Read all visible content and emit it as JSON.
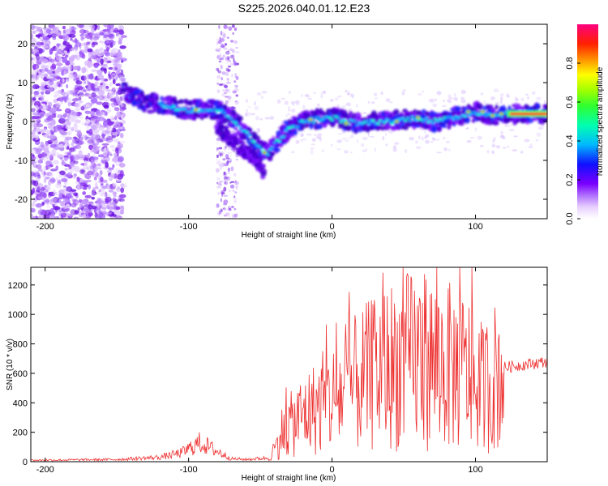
{
  "title": "S225.2026.040.01.12.E23",
  "chart_data": [
    {
      "type": "heatmap",
      "title": "S225.2026.040.01.12.E23",
      "xlabel": "Height of straight line (km)",
      "ylabel": "Frequency (Hz)",
      "xlim": [
        -210,
        150
      ],
      "ylim": [
        -25,
        25
      ],
      "xticks": [
        -200,
        -100,
        0,
        100
      ],
      "yticks": [
        -20,
        -10,
        0,
        10,
        20
      ],
      "colorbar": {
        "label": "Normalized spectral amplitude",
        "range": [
          0,
          1
        ],
        "ticks": [
          0.0,
          0.2,
          0.4,
          0.6,
          0.8
        ],
        "colormap": [
          "#ffffff",
          "#e6ccff",
          "#8a2be2",
          "#0000ff",
          "#00bfff",
          "#00ff80",
          "#80ff00",
          "#ffff00",
          "#ff8000",
          "#ff0000",
          "#ff0080"
        ]
      },
      "ridges": [
        {
          "name": "main",
          "x": [
            -145,
            -130,
            -115,
            -100,
            -90,
            -80,
            -70,
            -60,
            -50,
            -45,
            -38,
            -30,
            -20,
            -10,
            0,
            10,
            20,
            30,
            40,
            50,
            60,
            70,
            80,
            90,
            100,
            110,
            120,
            130,
            150
          ],
          "y": [
            8,
            5,
            4,
            3,
            3,
            3,
            1,
            -3,
            -7,
            -8,
            -5,
            -2,
            0,
            0.5,
            1,
            0,
            -0.5,
            0,
            0,
            0.5,
            1,
            0,
            0.5,
            1.5,
            2.5,
            1.5,
            2,
            2,
            2
          ]
        },
        {
          "name": "branch",
          "x": [
            -80,
            -70,
            -60,
            -50,
            -48
          ],
          "y": [
            -1,
            -5,
            -8,
            -11,
            -13
          ]
        }
      ]
    },
    {
      "type": "line",
      "xlabel": "Height of straight line (km)",
      "ylabel": "SNR (10 * v/v)",
      "xlim": [
        -210,
        150
      ],
      "ylim": [
        0,
        1320
      ],
      "xticks": [
        -200,
        -100,
        0,
        100
      ],
      "yticks": [
        0,
        200,
        400,
        600,
        800,
        1000,
        1200
      ],
      "color": "#ee3030",
      "series": [
        {
          "name": "SNR",
          "x": [
            -210,
            -150,
            -120,
            -105,
            -92,
            -80,
            -70,
            -60,
            -45,
            -40,
            -35,
            -20,
            0,
            20,
            40,
            60,
            80,
            95,
            105,
            120,
            150
          ],
          "y": [
            10,
            15,
            30,
            60,
            130,
            70,
            20,
            15,
            25,
            80,
            200,
            320,
            420,
            550,
            650,
            700,
            650,
            600,
            500,
            640,
            680
          ]
        }
      ]
    }
  ]
}
